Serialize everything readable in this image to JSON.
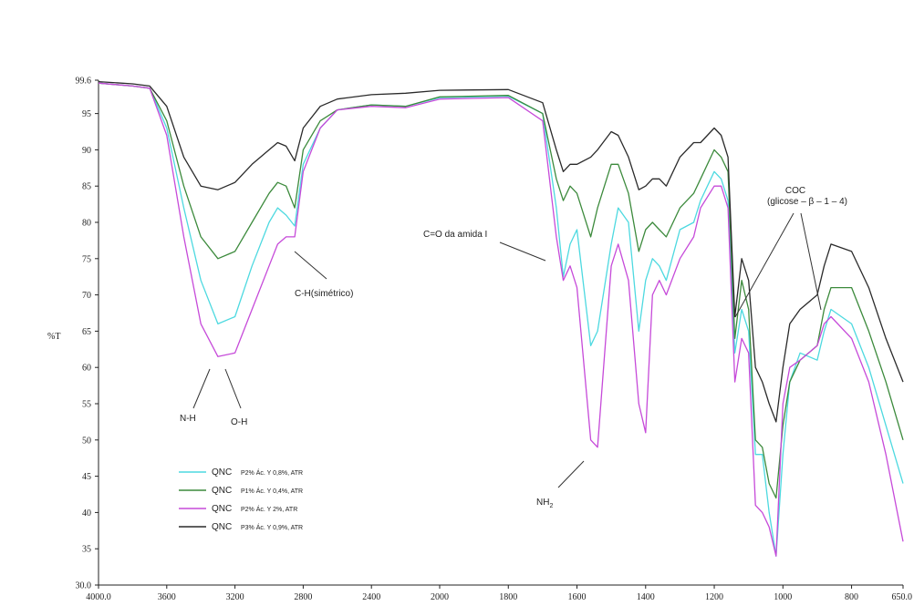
{
  "chart_data": {
    "type": "line",
    "title": "",
    "xlabel": "",
    "ylabel": "%T",
    "x_reversed": true,
    "xlim": [
      4000.0,
      650.0
    ],
    "ylim": [
      30.0,
      99.6
    ],
    "x_ticks": [
      "4000.0",
      "3600",
      "3200",
      "2800",
      "2400",
      "2000",
      "1800",
      "1600",
      "1400",
      "1200",
      "1000",
      "800",
      "650.0"
    ],
    "y_ticks": [
      "30.0",
      "35",
      "40",
      "45",
      "50",
      "55",
      "60",
      "65",
      "70",
      "75",
      "80",
      "85",
      "90",
      "95",
      "99.6"
    ],
    "grid": false,
    "legend_position": "bottom-left",
    "series": [
      {
        "name": "QNC",
        "detail": "P2% Ác. Y 0,8%, ATR",
        "color": "#4dd9e0",
        "points": [
          [
            4000,
            99.2
          ],
          [
            3800,
            98.8
          ],
          [
            3700,
            98.5
          ],
          [
            3600,
            93
          ],
          [
            3500,
            82
          ],
          [
            3400,
            72
          ],
          [
            3300,
            66
          ],
          [
            3200,
            67
          ],
          [
            3100,
            74
          ],
          [
            3000,
            80
          ],
          [
            2950,
            82
          ],
          [
            2900,
            81
          ],
          [
            2850,
            79.5
          ],
          [
            2800,
            88
          ],
          [
            2700,
            93
          ],
          [
            2600,
            95.5
          ],
          [
            2400,
            96.2
          ],
          [
            2200,
            96
          ],
          [
            2000,
            97.2
          ],
          [
            1800,
            97.4
          ],
          [
            1700,
            95
          ],
          [
            1660,
            82
          ],
          [
            1640,
            72.5
          ],
          [
            1620,
            77
          ],
          [
            1600,
            79
          ],
          [
            1560,
            63
          ],
          [
            1540,
            65
          ],
          [
            1500,
            77
          ],
          [
            1480,
            82
          ],
          [
            1450,
            80
          ],
          [
            1420,
            65
          ],
          [
            1400,
            72
          ],
          [
            1380,
            75
          ],
          [
            1360,
            74
          ],
          [
            1340,
            72
          ],
          [
            1300,
            79
          ],
          [
            1260,
            80
          ],
          [
            1240,
            83
          ],
          [
            1200,
            87
          ],
          [
            1180,
            86
          ],
          [
            1160,
            83
          ],
          [
            1140,
            62
          ],
          [
            1120,
            68
          ],
          [
            1100,
            65
          ],
          [
            1080,
            48
          ],
          [
            1060,
            48
          ],
          [
            1040,
            40
          ],
          [
            1020,
            34
          ],
          [
            1000,
            48
          ],
          [
            980,
            58
          ],
          [
            950,
            62
          ],
          [
            900,
            61
          ],
          [
            880,
            65
          ],
          [
            860,
            68
          ],
          [
            800,
            66
          ],
          [
            750,
            60
          ],
          [
            700,
            52
          ],
          [
            650,
            44
          ]
        ]
      },
      {
        "name": "QNC",
        "detail": "P1% Ác. Y 0,4%, ATR",
        "color": "#3c8a3c",
        "points": [
          [
            4000,
            99.2
          ],
          [
            3800,
            98.8
          ],
          [
            3700,
            98.5
          ],
          [
            3600,
            94
          ],
          [
            3500,
            85
          ],
          [
            3400,
            78
          ],
          [
            3300,
            75
          ],
          [
            3200,
            76
          ],
          [
            3100,
            80
          ],
          [
            3000,
            84
          ],
          [
            2950,
            85.5
          ],
          [
            2900,
            85
          ],
          [
            2850,
            82
          ],
          [
            2800,
            90
          ],
          [
            2700,
            94
          ],
          [
            2600,
            95.5
          ],
          [
            2400,
            96.2
          ],
          [
            2200,
            96
          ],
          [
            2000,
            97.3
          ],
          [
            1800,
            97.5
          ],
          [
            1700,
            95
          ],
          [
            1660,
            86
          ],
          [
            1640,
            83
          ],
          [
            1620,
            85
          ],
          [
            1600,
            84
          ],
          [
            1560,
            78
          ],
          [
            1540,
            82
          ],
          [
            1500,
            88
          ],
          [
            1480,
            88
          ],
          [
            1450,
            84
          ],
          [
            1420,
            76
          ],
          [
            1400,
            79
          ],
          [
            1380,
            80
          ],
          [
            1360,
            79
          ],
          [
            1340,
            78
          ],
          [
            1300,
            82
          ],
          [
            1260,
            84
          ],
          [
            1240,
            86
          ],
          [
            1200,
            90
          ],
          [
            1180,
            89
          ],
          [
            1160,
            87
          ],
          [
            1140,
            64
          ],
          [
            1120,
            72
          ],
          [
            1100,
            68
          ],
          [
            1080,
            50
          ],
          [
            1060,
            49
          ],
          [
            1040,
            44
          ],
          [
            1020,
            42
          ],
          [
            1000,
            52
          ],
          [
            980,
            58
          ],
          [
            950,
            61
          ],
          [
            900,
            63
          ],
          [
            880,
            68
          ],
          [
            860,
            71
          ],
          [
            800,
            71
          ],
          [
            750,
            65
          ],
          [
            700,
            58
          ],
          [
            650,
            50
          ]
        ]
      },
      {
        "name": "QNC",
        "detail": "P2% Ác. Y 2%, ATR",
        "color": "#c64ad9",
        "points": [
          [
            4000,
            99.2
          ],
          [
            3800,
            98.8
          ],
          [
            3700,
            98.5
          ],
          [
            3600,
            92
          ],
          [
            3500,
            78
          ],
          [
            3400,
            66
          ],
          [
            3300,
            61.5
          ],
          [
            3200,
            62
          ],
          [
            3100,
            68
          ],
          [
            3000,
            74
          ],
          [
            2950,
            77
          ],
          [
            2900,
            78
          ],
          [
            2850,
            78
          ],
          [
            2800,
            87
          ],
          [
            2700,
            93
          ],
          [
            2600,
            95.5
          ],
          [
            2400,
            96
          ],
          [
            2200,
            95.8
          ],
          [
            2000,
            97
          ],
          [
            1800,
            97.2
          ],
          [
            1700,
            94
          ],
          [
            1660,
            78
          ],
          [
            1640,
            72
          ],
          [
            1620,
            74
          ],
          [
            1600,
            71
          ],
          [
            1560,
            50
          ],
          [
            1540,
            49
          ],
          [
            1500,
            74
          ],
          [
            1480,
            77
          ],
          [
            1450,
            72
          ],
          [
            1420,
            55
          ],
          [
            1400,
            51
          ],
          [
            1380,
            70
          ],
          [
            1360,
            72
          ],
          [
            1340,
            70
          ],
          [
            1300,
            75
          ],
          [
            1260,
            78
          ],
          [
            1240,
            82
          ],
          [
            1200,
            85
          ],
          [
            1180,
            85
          ],
          [
            1160,
            82
          ],
          [
            1140,
            58
          ],
          [
            1120,
            64
          ],
          [
            1100,
            62
          ],
          [
            1080,
            41
          ],
          [
            1060,
            40
          ],
          [
            1040,
            38
          ],
          [
            1020,
            34
          ],
          [
            1000,
            55
          ],
          [
            980,
            60
          ],
          [
            950,
            61
          ],
          [
            900,
            63
          ],
          [
            880,
            66
          ],
          [
            860,
            67
          ],
          [
            800,
            64
          ],
          [
            750,
            58
          ],
          [
            700,
            48
          ],
          [
            650,
            36
          ]
        ]
      },
      {
        "name": "QNC",
        "detail": "P3% Ác. Y 0,9%, ATR",
        "color": "#2a2a2a",
        "points": [
          [
            4000,
            99.4
          ],
          [
            3800,
            99.1
          ],
          [
            3700,
            98.8
          ],
          [
            3600,
            96
          ],
          [
            3500,
            89
          ],
          [
            3400,
            85
          ],
          [
            3300,
            84.5
          ],
          [
            3200,
            85.5
          ],
          [
            3100,
            88
          ],
          [
            3000,
            90
          ],
          [
            2950,
            91
          ],
          [
            2900,
            90.5
          ],
          [
            2850,
            88.5
          ],
          [
            2800,
            93
          ],
          [
            2700,
            96
          ],
          [
            2600,
            97
          ],
          [
            2400,
            97.6
          ],
          [
            2200,
            97.8
          ],
          [
            2000,
            98.2
          ],
          [
            1800,
            98.3
          ],
          [
            1700,
            96.5
          ],
          [
            1660,
            90
          ],
          [
            1640,
            87
          ],
          [
            1620,
            88
          ],
          [
            1600,
            88
          ],
          [
            1560,
            89
          ],
          [
            1540,
            90
          ],
          [
            1500,
            92.5
          ],
          [
            1480,
            92
          ],
          [
            1450,
            89
          ],
          [
            1420,
            84.5
          ],
          [
            1400,
            85
          ],
          [
            1380,
            86
          ],
          [
            1360,
            86
          ],
          [
            1340,
            85
          ],
          [
            1300,
            89
          ],
          [
            1260,
            91
          ],
          [
            1240,
            91
          ],
          [
            1200,
            93
          ],
          [
            1180,
            92
          ],
          [
            1160,
            89
          ],
          [
            1140,
            67
          ],
          [
            1120,
            75
          ],
          [
            1100,
            72
          ],
          [
            1080,
            60
          ],
          [
            1060,
            58
          ],
          [
            1040,
            55
          ],
          [
            1020,
            52.5
          ],
          [
            1000,
            60
          ],
          [
            980,
            66
          ],
          [
            950,
            68
          ],
          [
            900,
            70
          ],
          [
            880,
            74
          ],
          [
            860,
            77
          ],
          [
            800,
            76
          ],
          [
            750,
            71
          ],
          [
            700,
            64
          ],
          [
            650,
            58
          ]
        ]
      }
    ],
    "annotations": [
      "N-H",
      "O-H",
      "C-H(simétrico)",
      "C=O da amida I",
      "NH2",
      "COC",
      "(glicose – β – 1 – 4)"
    ]
  }
}
